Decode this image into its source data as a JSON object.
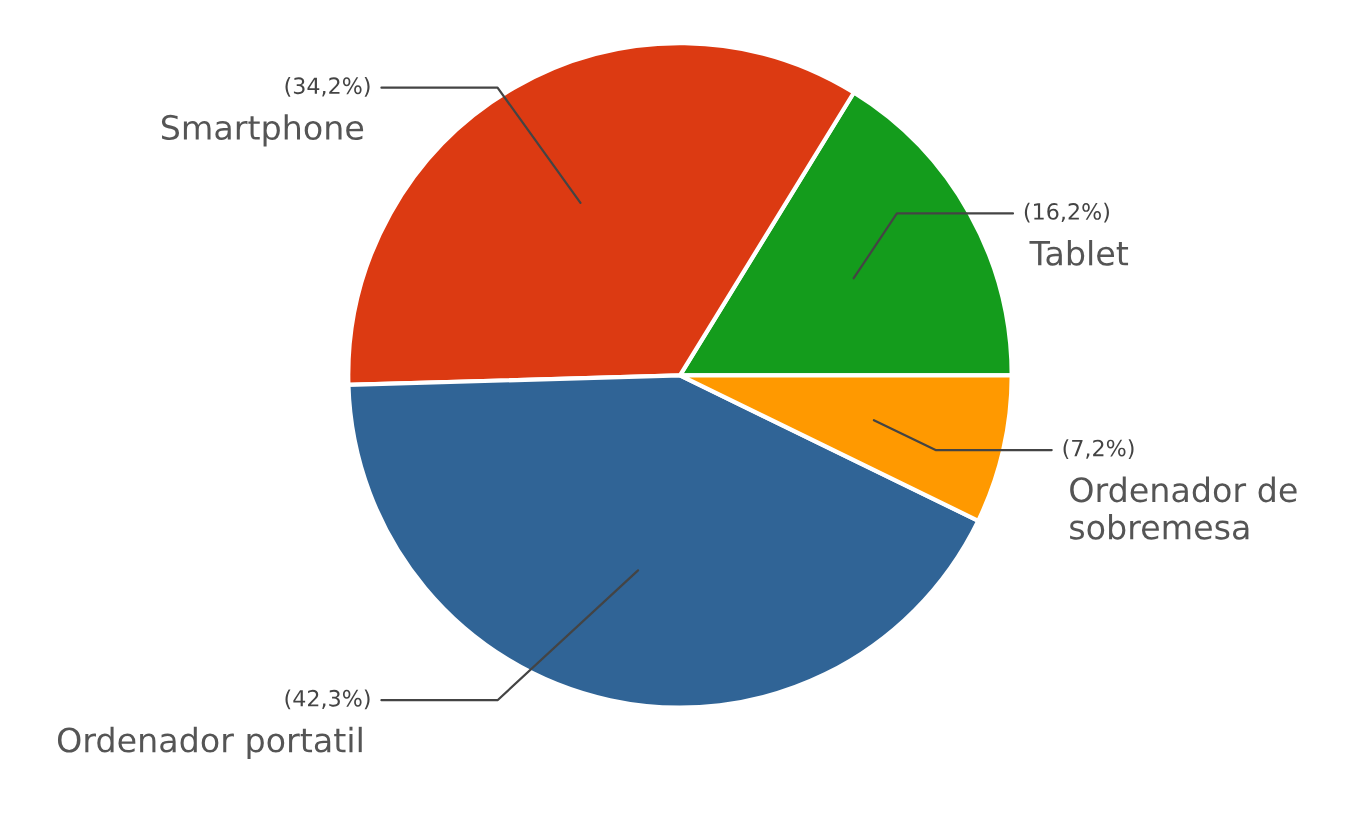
{
  "chart_data": {
    "type": "pie",
    "categories": [
      "Tablet",
      "Smartphone",
      "Ordenador portatil",
      "Ordenador de sobremesa"
    ],
    "values": [
      16.2,
      34.2,
      42.3,
      7.2
    ],
    "value_labels": [
      "(16,2%)",
      "(34,2%)",
      "(42,3%)",
      "(7,2%)"
    ],
    "colors": [
      "#149c1c",
      "#dc3a12",
      "#306496",
      "#ff9900"
    ],
    "legend": false
  }
}
